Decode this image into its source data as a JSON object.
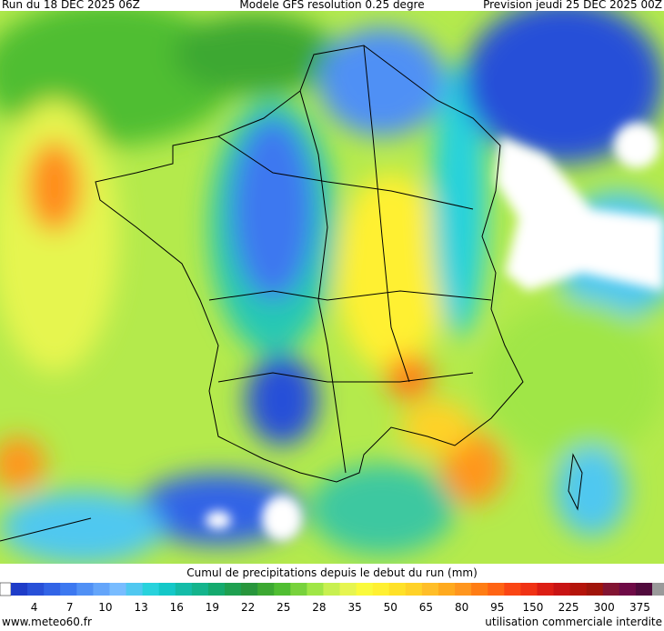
{
  "header": {
    "run": "Run du 18 DEC 2025 06Z",
    "model": "Modele GFS resolution 0.25 degre",
    "forecast": "Prevision jeudi 25 DEC 2025 00Z"
  },
  "legend": {
    "title": "Cumul de precipitations depuis le debut du run (mm)",
    "ticks": [
      4,
      7,
      10,
      13,
      16,
      19,
      22,
      25,
      28,
      35,
      50,
      65,
      80,
      95,
      150,
      225,
      300,
      375
    ],
    "low_color": "#ffffff",
    "high_color": "#9a9a9a",
    "colors": [
      "#1e3cc8",
      "#2850d8",
      "#3264e6",
      "#3c78f0",
      "#5090f5",
      "#64a5fa",
      "#78bcff",
      "#50c8f0",
      "#28d2dc",
      "#14c8c8",
      "#14bca8",
      "#14b48c",
      "#14aa6e",
      "#1ea050",
      "#28963c",
      "#3ca832",
      "#50be32",
      "#78d23c",
      "#a0e646",
      "#c8f050",
      "#e6f550",
      "#fafa3c",
      "#fff032",
      "#ffe128",
      "#ffd228",
      "#ffbe28",
      "#ffaa1e",
      "#ff961e",
      "#ff7d14",
      "#ff6414",
      "#fa4614",
      "#f03214",
      "#dc1e14",
      "#c81414",
      "#b4140a",
      "#a0140a",
      "#821432",
      "#6e0a46",
      "#500a3c"
    ]
  },
  "footer": {
    "site": "www.meteo60.fr",
    "notice": "utilisation commerciale interdite"
  }
}
